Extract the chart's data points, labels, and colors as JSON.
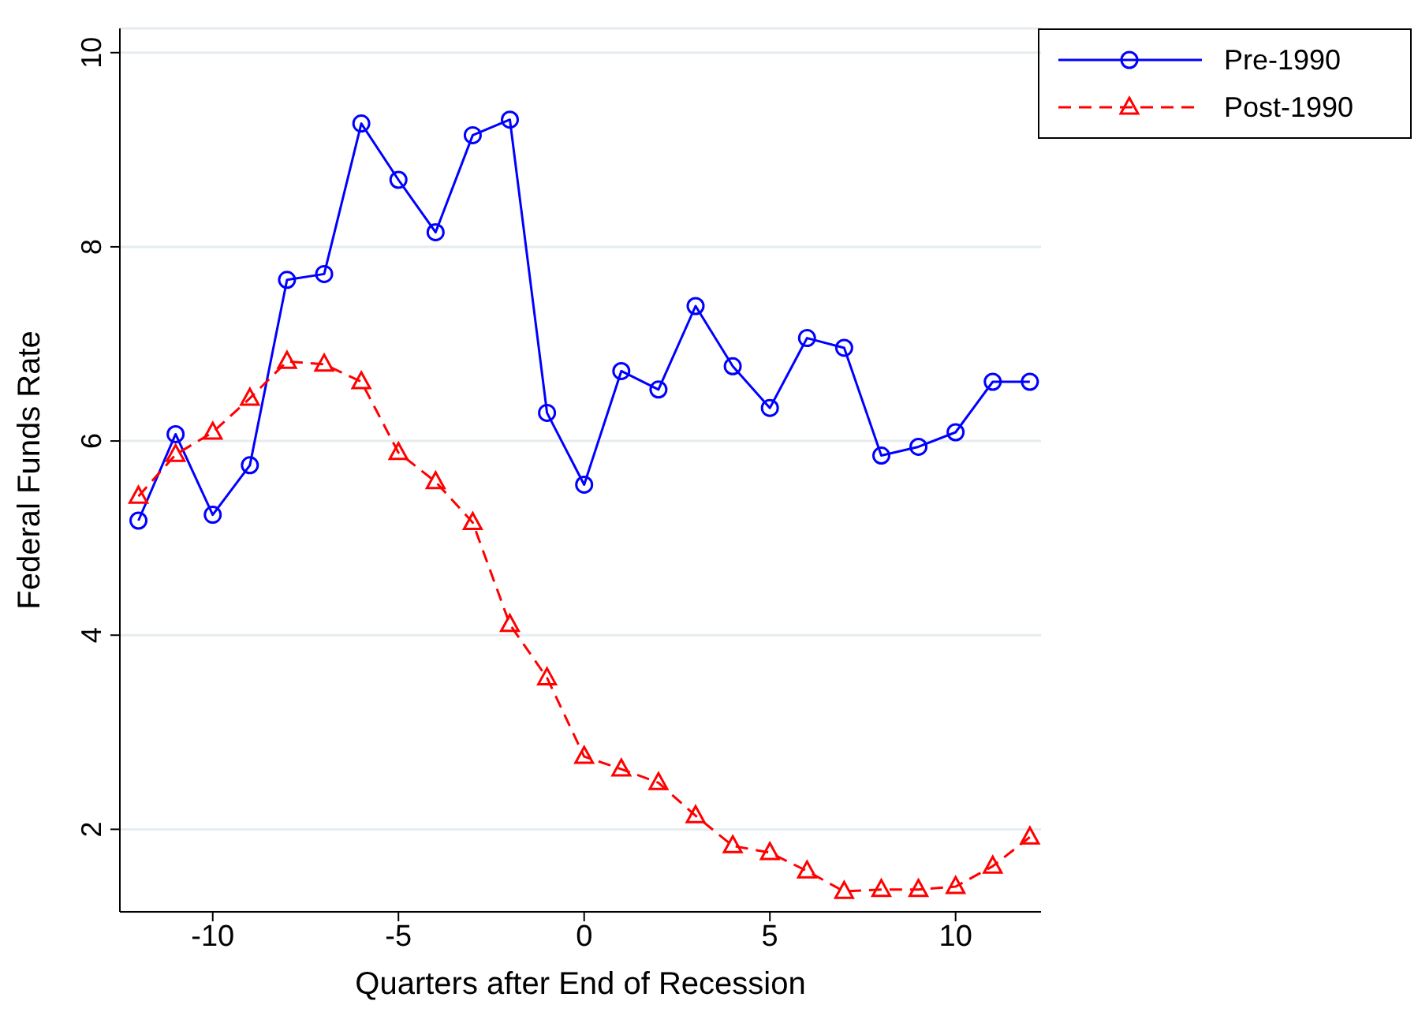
{
  "chart_data": {
    "type": "line",
    "xlabel": "Quarters after End of Recession",
    "ylabel": "Federal Funds Rate",
    "x": [
      -12,
      -11,
      -10,
      -9,
      -8,
      -7,
      -6,
      -5,
      -4,
      -3,
      -2,
      -1,
      0,
      1,
      2,
      3,
      4,
      5,
      6,
      7,
      8,
      9,
      10,
      11,
      12
    ],
    "series": [
      {
        "name": "Pre-1990",
        "color": "#0000ff",
        "marker": "circle",
        "line_style": "solid",
        "values": [
          5.18,
          6.07,
          5.24,
          5.75,
          7.66,
          7.72,
          9.27,
          8.69,
          8.15,
          9.15,
          9.31,
          6.29,
          5.55,
          6.72,
          6.53,
          7.39,
          6.77,
          6.34,
          7.06,
          6.96,
          5.85,
          5.94,
          6.09,
          6.61,
          6.61
        ]
      },
      {
        "name": "Post-1990",
        "color": "#ff0000",
        "marker": "triangle",
        "line_style": "dashed",
        "values": [
          5.43,
          5.86,
          6.09,
          6.44,
          6.82,
          6.79,
          6.61,
          5.88,
          5.58,
          5.16,
          4.11,
          3.56,
          2.75,
          2.62,
          2.48,
          2.14,
          1.83,
          1.76,
          1.57,
          1.36,
          1.38,
          1.38,
          1.41,
          1.62,
          1.92
        ]
      }
    ],
    "xlim": [
      -12.5,
      12.3
    ],
    "xticks": [
      -10,
      -5,
      0,
      5,
      10
    ],
    "ylim": [
      1.15,
      10.25
    ],
    "yticks": [
      2,
      4,
      6,
      8,
      10
    ],
    "grid": "y",
    "legend": "top right"
  }
}
